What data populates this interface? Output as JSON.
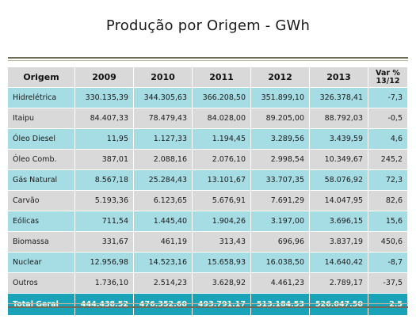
{
  "title": "Produção por Origem - GWh",
  "columns": [
    "Origem",
    "2009",
    "2010",
    "2011",
    "2012",
    "2013",
    "Var %",
    "13/12"
  ],
  "rows": [
    {
      "origem": "Hidrelétrica",
      "v2009": "330.135,39",
      "v2010": "344.305,63",
      "v2011": "366.208,50",
      "v2012": "351.899,10",
      "v2013": "326.378,41",
      "var": "-7,3"
    },
    {
      "origem": "Itaipu",
      "v2009": "84.407,33",
      "v2010": "78.479,43",
      "v2011": "84.028,00",
      "v2012": "89.205,00",
      "v2013": "88.792,03",
      "var": "-0,5"
    },
    {
      "origem": "Óleo Diesel",
      "v2009": "11,95",
      "v2010": "1.127,33",
      "v2011": "1.194,45",
      "v2012": "3.289,56",
      "v2013": "3.439,59",
      "var": "4,6"
    },
    {
      "origem": "Óleo Comb.",
      "v2009": "387,01",
      "v2010": "2.088,16",
      "v2011": "2.076,10",
      "v2012": "2.998,54",
      "v2013": "10.349,67",
      "var": "245,2"
    },
    {
      "origem": "Gás Natural",
      "v2009": "8.567,18",
      "v2010": "25.284,43",
      "v2011": "13.101,67",
      "v2012": "33.707,35",
      "v2013": "58.076,92",
      "var": "72,3"
    },
    {
      "origem": "Carvão",
      "v2009": "5.193,36",
      "v2010": "6.123,65",
      "v2011": "5.676,91",
      "v2012": "7.691,29",
      "v2013": "14.047,95",
      "var": "82,6"
    },
    {
      "origem": "Eólicas",
      "v2009": "711,54",
      "v2010": "1.445,40",
      "v2011": "1.904,26",
      "v2012": "3.197,00",
      "v2013": "3.696,15",
      "var": "15,6"
    },
    {
      "origem": "Biomassa",
      "v2009": "331,67",
      "v2010": "461,19",
      "v2011": "313,43",
      "v2012": "696,96",
      "v2013": "3.837,19",
      "var": "450,6"
    },
    {
      "origem": "Nuclear",
      "v2009": "12.956,98",
      "v2010": "14.523,16",
      "v2011": "15.658,93",
      "v2012": "16.038,50",
      "v2013": "14.640,42",
      "var": "-8,7"
    },
    {
      "origem": "Outros",
      "v2009": "1.736,10",
      "v2010": "2.514,23",
      "v2011": "3.628,92",
      "v2012": "4.461,23",
      "v2013": "2.789,17",
      "var": "-37,5"
    }
  ],
  "total": {
    "origem": "Total Geral",
    "v2009": "444.438,52",
    "v2010": "476.352,60",
    "v2011": "493.791,17",
    "v2012": "513.184,53",
    "v2013": "526.047,50",
    "var": "2,5"
  },
  "colors": {
    "cyan_row": "#a6dde5",
    "grey_row": "#d9d9d9",
    "total_row": "#19a2b8",
    "rule": "#6e6a58"
  }
}
